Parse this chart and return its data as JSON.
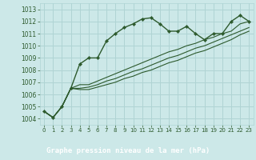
{
  "title": "Graphe pression niveau de la mer (hPa)",
  "bg_color": "#cce8e8",
  "label_bg_color": "#2d6a2d",
  "label_text_color": "#ffffff",
  "grid_color": "#b0d4d4",
  "line_color": "#2d5a2d",
  "xlim": [
    -0.5,
    23.5
  ],
  "ylim": [
    1003.5,
    1013.5
  ],
  "yticks": [
    1004,
    1005,
    1006,
    1007,
    1008,
    1009,
    1010,
    1011,
    1012,
    1013
  ],
  "xticks": [
    0,
    1,
    2,
    3,
    4,
    5,
    6,
    7,
    8,
    9,
    10,
    11,
    12,
    13,
    14,
    15,
    16,
    17,
    18,
    19,
    20,
    21,
    22,
    23
  ],
  "series_main": [
    1004.6,
    1004.1,
    1005.0,
    1006.5,
    1008.5,
    1009.0,
    1009.0,
    1010.4,
    1011.0,
    1011.5,
    1011.8,
    1012.2,
    1012.3,
    1011.8,
    1011.2,
    1011.2,
    1011.6,
    1011.0,
    1010.5,
    1011.0,
    1011.0,
    1012.0,
    1012.5,
    1012.0
  ],
  "series_linear": [
    [
      1004.6,
      1004.1,
      1005.0,
      1006.5,
      1006.8,
      1006.8,
      1007.1,
      1007.4,
      1007.7,
      1008.0,
      1008.3,
      1008.6,
      1008.9,
      1009.2,
      1009.5,
      1009.7,
      1010.0,
      1010.2,
      1010.5,
      1010.7,
      1011.0,
      1011.2,
      1011.8,
      1012.0
    ],
    [
      1004.6,
      1004.1,
      1005.0,
      1006.5,
      1006.5,
      1006.6,
      1006.8,
      1007.1,
      1007.3,
      1007.6,
      1007.9,
      1008.1,
      1008.4,
      1008.7,
      1009.0,
      1009.2,
      1009.5,
      1009.8,
      1010.0,
      1010.3,
      1010.6,
      1010.9,
      1011.2,
      1011.5
    ],
    [
      1004.6,
      1004.1,
      1005.0,
      1006.5,
      1006.4,
      1006.4,
      1006.6,
      1006.8,
      1007.0,
      1007.3,
      1007.5,
      1007.8,
      1008.0,
      1008.3,
      1008.6,
      1008.8,
      1009.1,
      1009.4,
      1009.6,
      1009.9,
      1010.2,
      1010.5,
      1010.9,
      1011.2
    ]
  ],
  "tick_fontsize": 5.5,
  "label_fontsize": 6.5
}
